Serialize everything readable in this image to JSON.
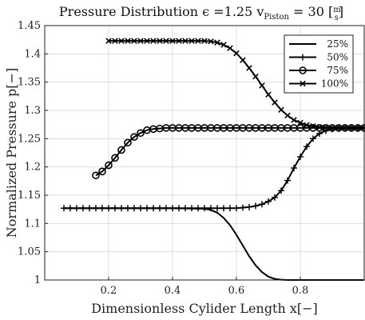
{
  "chart_data": {
    "type": "line",
    "title": "Pressure Distribution ϵ =1.25 v",
    "title_subscript": "Piston",
    "title_suffix": " = 30 [",
    "title_unit_num": "m",
    "title_unit_den": "s",
    "title_close": "]",
    "xlabel": "Dimensionless Cylider Length x[−]",
    "ylabel": "Normalized Pressure p[−]",
    "xlim": [
      0.0,
      1.0
    ],
    "ylim": [
      1.0,
      1.45
    ],
    "xticks": [
      0.2,
      0.4,
      0.6,
      0.8
    ],
    "xtick_labels": [
      "0.2",
      "0.4",
      "0.6",
      "0.8"
    ],
    "yticks": [
      1.0,
      1.05,
      1.1,
      1.15,
      1.2,
      1.25,
      1.3,
      1.35,
      1.4,
      1.45
    ],
    "ytick_labels": [
      "1",
      "1.05",
      "1.1",
      "1.15",
      "1.2",
      "1.25",
      "1.3",
      "1.35",
      "1.4",
      "1.45"
    ],
    "grid": true,
    "legend_position": "top-right",
    "series": [
      {
        "name": "25%",
        "marker": "none",
        "x": [
          0.06,
          0.1,
          0.2,
          0.3,
          0.4,
          0.5,
          0.52,
          0.54,
          0.56,
          0.58,
          0.6,
          0.62,
          0.64,
          0.66,
          0.68,
          0.7,
          0.72,
          0.74,
          0.76,
          0.8,
          0.9,
          1.0
        ],
        "values": [
          1.127,
          1.127,
          1.127,
          1.127,
          1.127,
          1.126,
          1.124,
          1.119,
          1.11,
          1.097,
          1.08,
          1.061,
          1.042,
          1.026,
          1.014,
          1.006,
          1.002,
          1.0005,
          1.0,
          1.0,
          1.0,
          1.0
        ]
      },
      {
        "name": "50%",
        "marker": "plus",
        "x": [
          0.06,
          0.08,
          0.1,
          0.12,
          0.14,
          0.16,
          0.18,
          0.2,
          0.22,
          0.24,
          0.26,
          0.28,
          0.3,
          0.32,
          0.34,
          0.36,
          0.38,
          0.4,
          0.42,
          0.44,
          0.46,
          0.48,
          0.5,
          0.52,
          0.54,
          0.56,
          0.58,
          0.6,
          0.62,
          0.64,
          0.66,
          0.68,
          0.7,
          0.72,
          0.74,
          0.76,
          0.78,
          0.8,
          0.82,
          0.84,
          0.86,
          0.88,
          0.9,
          0.92,
          0.94,
          0.96,
          0.98,
          1.0
        ],
        "values": [
          1.127,
          1.127,
          1.127,
          1.127,
          1.127,
          1.127,
          1.127,
          1.127,
          1.127,
          1.127,
          1.127,
          1.127,
          1.127,
          1.127,
          1.127,
          1.127,
          1.127,
          1.127,
          1.127,
          1.127,
          1.127,
          1.127,
          1.127,
          1.127,
          1.127,
          1.127,
          1.127,
          1.127,
          1.128,
          1.129,
          1.131,
          1.134,
          1.139,
          1.146,
          1.158,
          1.176,
          1.198,
          1.218,
          1.236,
          1.25,
          1.259,
          1.264,
          1.267,
          1.268,
          1.269,
          1.269,
          1.269,
          1.269
        ]
      },
      {
        "name": "75%",
        "marker": "circle",
        "x": [
          0.16,
          0.18,
          0.2,
          0.22,
          0.24,
          0.26,
          0.28,
          0.3,
          0.32,
          0.34,
          0.36,
          0.38,
          0.4,
          0.42,
          0.44,
          0.46,
          0.48,
          0.5,
          0.52,
          0.54,
          0.56,
          0.58,
          0.6,
          0.62,
          0.64,
          0.66,
          0.68,
          0.7,
          0.72,
          0.74,
          0.76,
          0.78,
          0.8,
          0.82,
          0.84,
          0.86,
          0.88,
          0.9,
          0.92,
          0.94,
          0.96,
          0.98,
          1.0
        ],
        "values": [
          1.185,
          1.192,
          1.203,
          1.216,
          1.23,
          1.243,
          1.253,
          1.26,
          1.265,
          1.267,
          1.268,
          1.269,
          1.269,
          1.269,
          1.269,
          1.269,
          1.269,
          1.269,
          1.269,
          1.269,
          1.269,
          1.269,
          1.269,
          1.269,
          1.269,
          1.269,
          1.269,
          1.269,
          1.269,
          1.269,
          1.269,
          1.269,
          1.269,
          1.269,
          1.269,
          1.269,
          1.269,
          1.269,
          1.269,
          1.269,
          1.269,
          1.269,
          1.269
        ]
      },
      {
        "name": "100%",
        "marker": "cross",
        "x": [
          0.2,
          0.22,
          0.24,
          0.26,
          0.28,
          0.3,
          0.32,
          0.34,
          0.36,
          0.38,
          0.4,
          0.42,
          0.44,
          0.46,
          0.48,
          0.5,
          0.52,
          0.54,
          0.56,
          0.58,
          0.6,
          0.62,
          0.64,
          0.66,
          0.68,
          0.7,
          0.72,
          0.74,
          0.76,
          0.78,
          0.8,
          0.82,
          0.84,
          0.86,
          0.88,
          0.9,
          0.92,
          0.94,
          0.96,
          0.98,
          1.0
        ],
        "values": [
          1.423,
          1.423,
          1.423,
          1.423,
          1.423,
          1.423,
          1.423,
          1.423,
          1.423,
          1.423,
          1.423,
          1.423,
          1.423,
          1.423,
          1.423,
          1.423,
          1.422,
          1.42,
          1.416,
          1.41,
          1.401,
          1.389,
          1.375,
          1.36,
          1.344,
          1.328,
          1.314,
          1.301,
          1.291,
          1.283,
          1.278,
          1.274,
          1.272,
          1.27,
          1.27,
          1.269,
          1.269,
          1.269,
          1.269,
          1.269,
          1.269
        ]
      }
    ]
  }
}
